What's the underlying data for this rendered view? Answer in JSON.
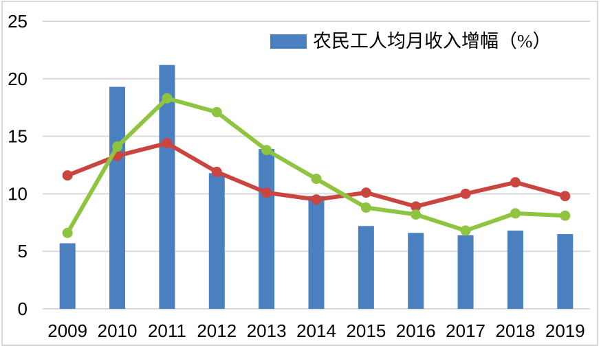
{
  "chart_data": {
    "type": "combo-bar-line",
    "title": "",
    "xlabel": "",
    "ylabel": "",
    "categories": [
      "2009",
      "2010",
      "2011",
      "2012",
      "2013",
      "2014",
      "2015",
      "2016",
      "2017",
      "2018",
      "2019"
    ],
    "series": [
      {
        "id": "migrant-income-bars",
        "type": "bar",
        "color": "#4a7fc0",
        "legend_label": "农民工人均月收入增幅（%）",
        "values": [
          5.7,
          19.3,
          21.2,
          11.8,
          13.9,
          9.8,
          7.2,
          6.6,
          6.4,
          6.8,
          6.5
        ]
      },
      {
        "id": "unlabeled-red-line",
        "type": "line",
        "color": "#ca4540",
        "legend_label": "",
        "values": [
          11.6,
          13.3,
          14.4,
          11.9,
          10.1,
          9.5,
          10.1,
          8.9,
          10.0,
          11.0,
          9.8
        ]
      },
      {
        "id": "unlabeled-green-line",
        "type": "line",
        "color": "#8ec440",
        "legend_label": "",
        "values": [
          6.6,
          14.1,
          18.3,
          17.1,
          13.8,
          11.3,
          8.8,
          8.2,
          6.8,
          8.3,
          8.1
        ]
      }
    ],
    "y_axis": {
      "min": 0,
      "max": 25,
      "tick_interval": 5,
      "tick_values": [
        0,
        5,
        10,
        15,
        20,
        25
      ],
      "tick_labels": [
        "0",
        "5",
        "10",
        "15",
        "20",
        "25"
      ]
    },
    "ylim": [
      0,
      25
    ],
    "grid": true,
    "legend_position": "top-center",
    "legend_entries": [
      {
        "label": "农民工人均月收入增幅（%）",
        "swatch_color": "#4a7fc0"
      }
    ]
  },
  "colors": {
    "grid": "#d9d9d9",
    "frame_border": "#d9d9d9",
    "text": "#000000",
    "background": "#ffffff",
    "bar_blue": "#4a7fc0",
    "line_red": "#ca4540",
    "line_green": "#8ec440"
  }
}
